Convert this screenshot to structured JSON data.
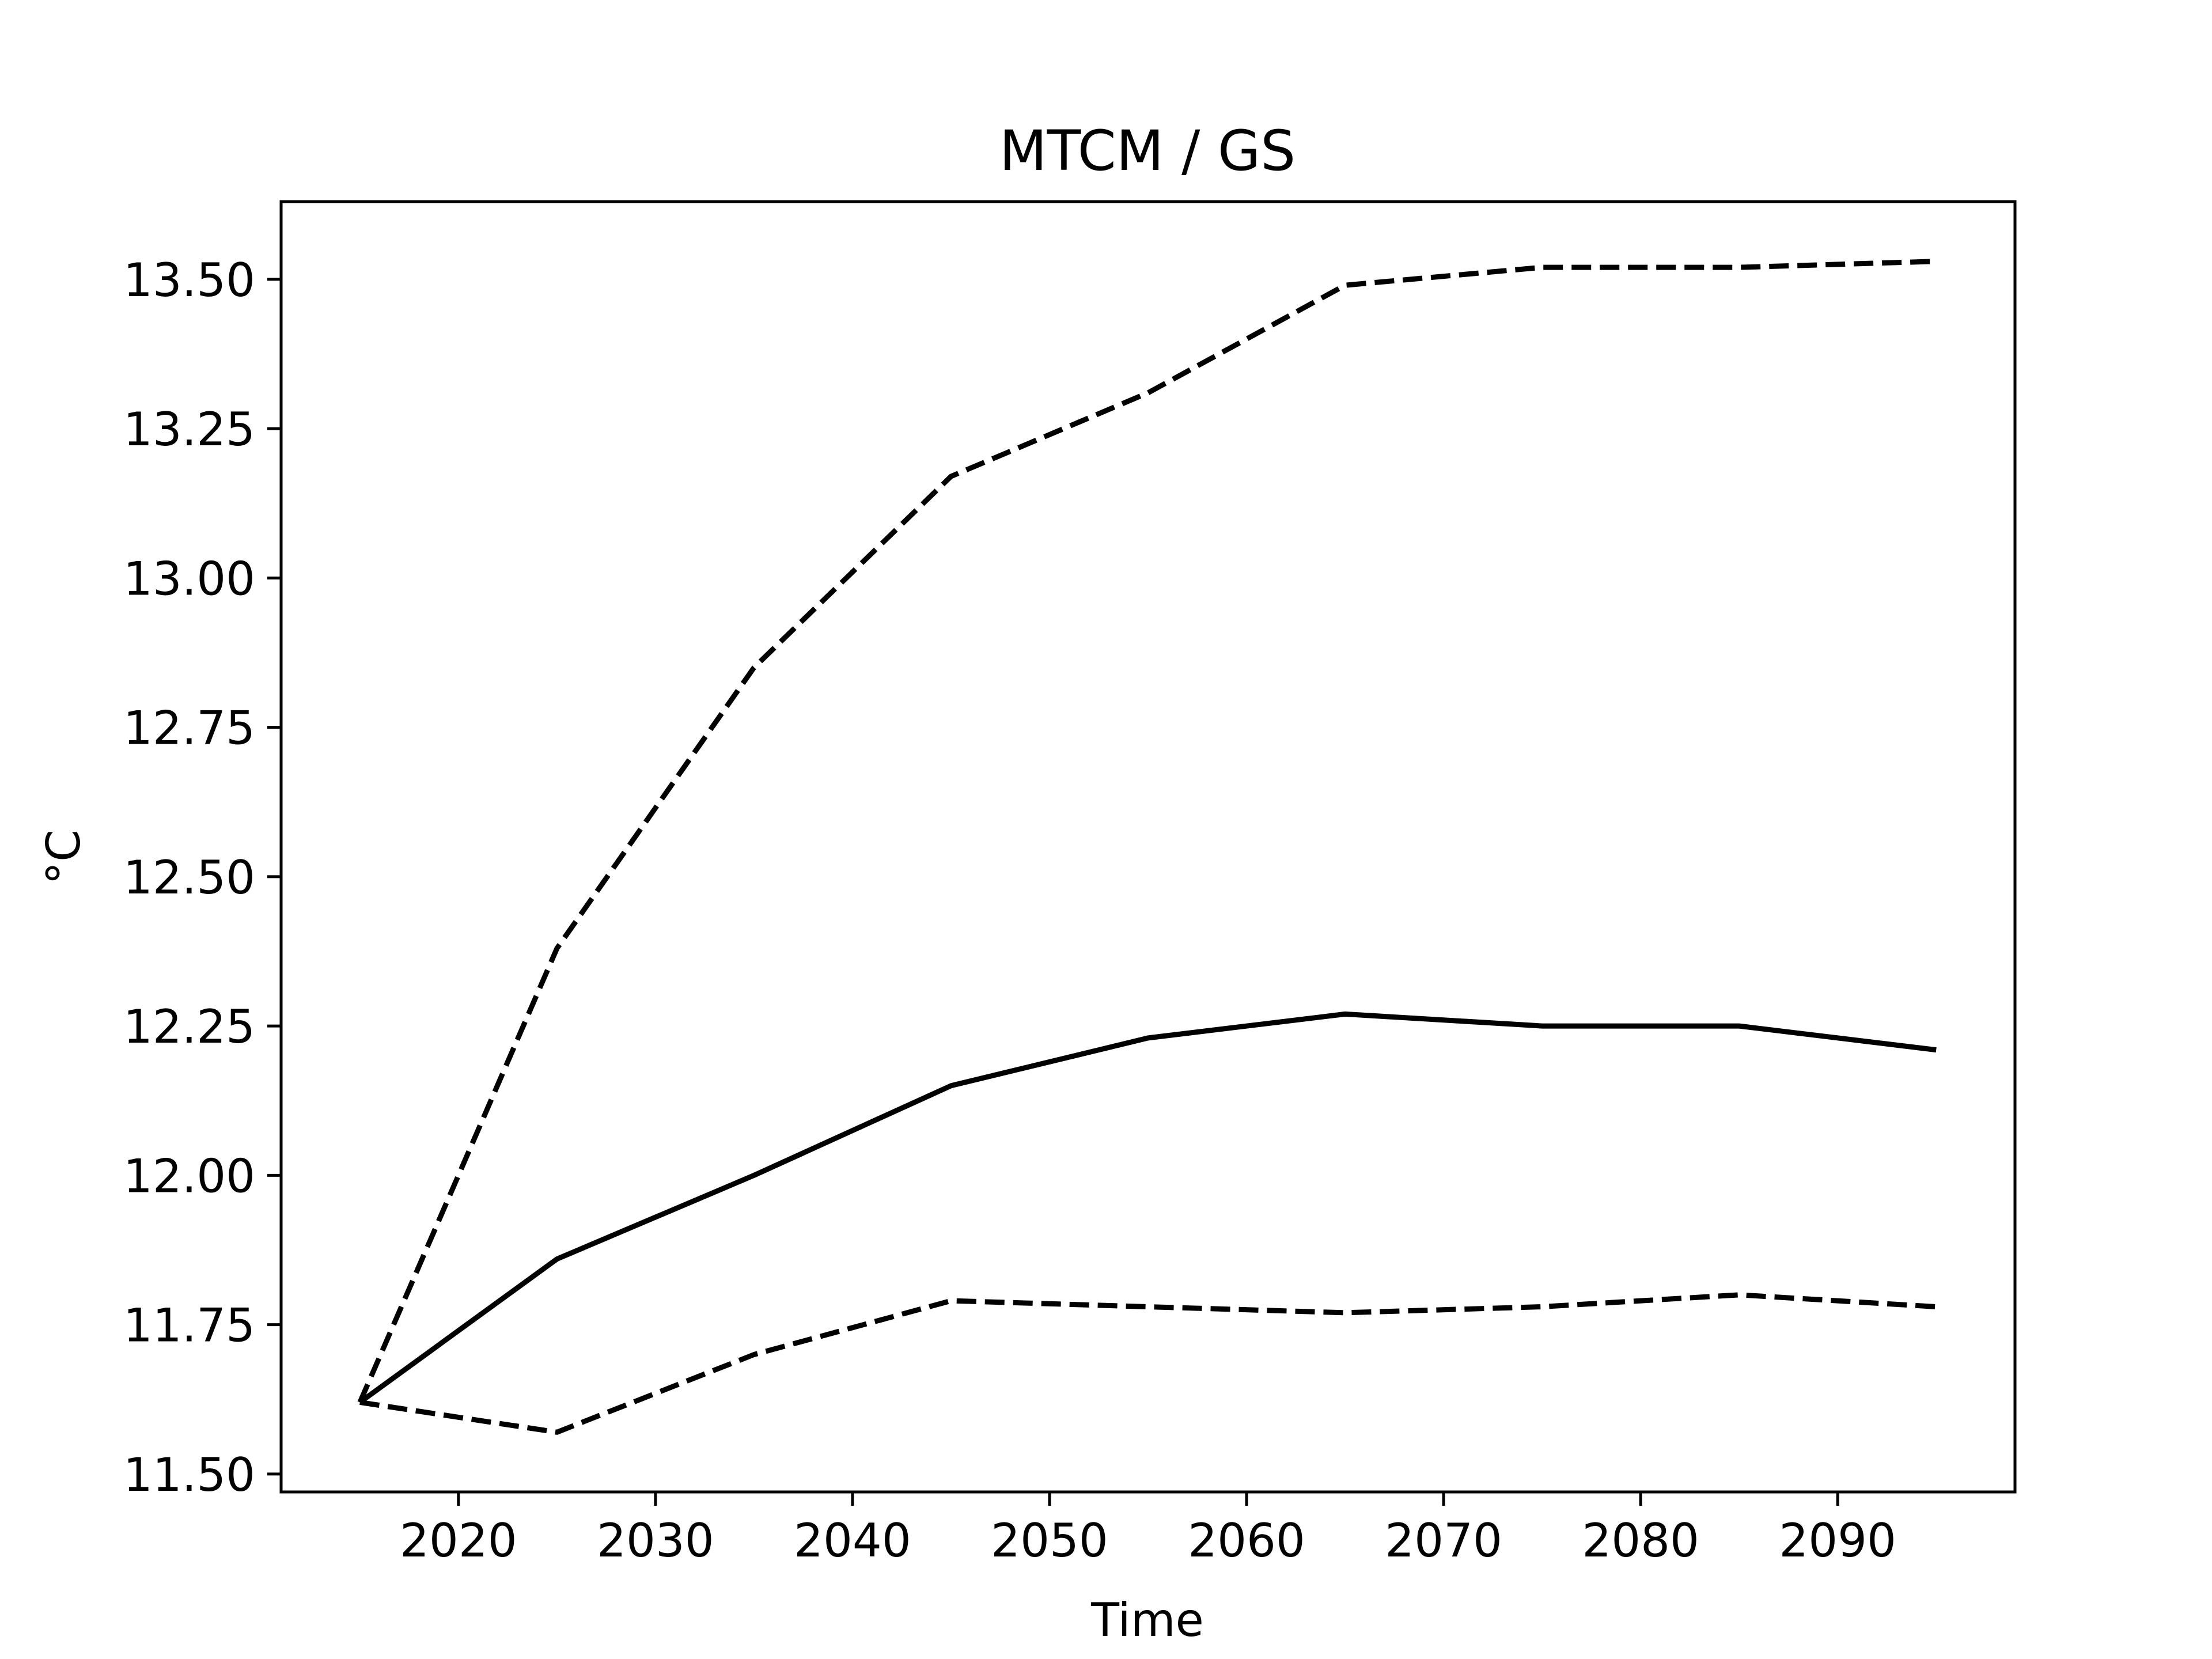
{
  "chart_data": {
    "type": "line",
    "title": "MTCM / GS",
    "xlabel": "Time",
    "ylabel": "°C",
    "xlim": [
      2011,
      2099
    ],
    "ylim": [
      11.47,
      13.63
    ],
    "xticks": [
      2020,
      2030,
      2040,
      2050,
      2060,
      2070,
      2080,
      2090
    ],
    "xtick_labels": [
      "2020",
      "2030",
      "2040",
      "2050",
      "2060",
      "2070",
      "2080",
      "2090"
    ],
    "yticks": [
      11.5,
      11.75,
      12.0,
      12.25,
      12.5,
      12.75,
      13.0,
      13.25,
      13.5
    ],
    "ytick_labels": [
      "11.50",
      "11.75",
      "12.00",
      "12.25",
      "12.50",
      "12.75",
      "13.00",
      "13.25",
      "13.50"
    ],
    "grid": false,
    "x": [
      2015,
      2025,
      2035,
      2045,
      2055,
      2065,
      2075,
      2085,
      2095
    ],
    "series": [
      {
        "color": "#000000",
        "dash": "solid",
        "values": [
          11.62,
          11.86,
          12.0,
          12.15,
          12.23,
          12.27,
          12.25,
          12.25,
          12.21
        ]
      },
      {
        "color": "#000000",
        "dash": "dashed",
        "values": [
          11.62,
          12.38,
          12.85,
          13.17,
          13.31,
          13.49,
          13.52,
          13.52,
          13.53
        ]
      },
      {
        "color": "#000000",
        "dash": "dashed",
        "values": [
          11.62,
          11.57,
          11.7,
          11.79,
          11.78,
          11.77,
          11.78,
          11.8,
          11.78
        ]
      }
    ]
  }
}
